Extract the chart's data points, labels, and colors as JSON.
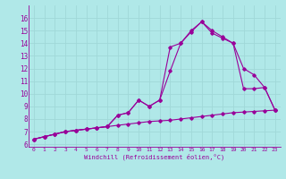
{
  "xlabel": "Windchill (Refroidissement éolien,°C)",
  "bg_color": "#b0e8e8",
  "grid_color": "#a0d8d8",
  "line_color": "#990099",
  "xlim": [
    -0.5,
    23.5
  ],
  "ylim": [
    5.8,
    17.0
  ],
  "xticks": [
    0,
    1,
    2,
    3,
    4,
    5,
    6,
    7,
    8,
    9,
    10,
    11,
    12,
    13,
    14,
    15,
    16,
    17,
    18,
    19,
    20,
    21,
    22,
    23
  ],
  "yticks": [
    6,
    7,
    8,
    9,
    10,
    11,
    12,
    13,
    14,
    15,
    16
  ],
  "series1": {
    "x": [
      0,
      1,
      2,
      3,
      4,
      5,
      6,
      7,
      8,
      9,
      10,
      11,
      12,
      13,
      14,
      15,
      16,
      17,
      18,
      19,
      20,
      21,
      22,
      23
    ],
    "y": [
      6.4,
      6.6,
      6.8,
      7.0,
      7.1,
      7.2,
      7.3,
      7.4,
      7.5,
      7.6,
      7.7,
      7.8,
      7.85,
      7.9,
      8.0,
      8.1,
      8.2,
      8.3,
      8.4,
      8.5,
      8.55,
      8.6,
      8.65,
      8.7
    ]
  },
  "series2": {
    "x": [
      0,
      1,
      2,
      3,
      4,
      5,
      6,
      7,
      8,
      9,
      10,
      11,
      12,
      13,
      14,
      15,
      16,
      17,
      18,
      19,
      20,
      21,
      22,
      23
    ],
    "y": [
      6.4,
      6.6,
      6.8,
      7.0,
      7.1,
      7.2,
      7.3,
      7.4,
      8.3,
      8.5,
      9.5,
      9.0,
      9.5,
      11.8,
      14.0,
      15.0,
      15.7,
      15.0,
      14.5,
      14.0,
      10.4,
      10.4,
      10.5,
      8.7
    ]
  },
  "series3": {
    "x": [
      0,
      1,
      2,
      3,
      4,
      5,
      6,
      7,
      8,
      9,
      10,
      11,
      12,
      13,
      14,
      15,
      16,
      17,
      18,
      19,
      20,
      21,
      22,
      23
    ],
    "y": [
      6.4,
      6.6,
      6.8,
      7.0,
      7.1,
      7.2,
      7.3,
      7.4,
      8.3,
      8.5,
      9.5,
      9.0,
      9.5,
      13.7,
      14.0,
      14.9,
      15.7,
      14.8,
      14.4,
      14.0,
      12.0,
      11.5,
      10.5,
      8.7
    ]
  }
}
